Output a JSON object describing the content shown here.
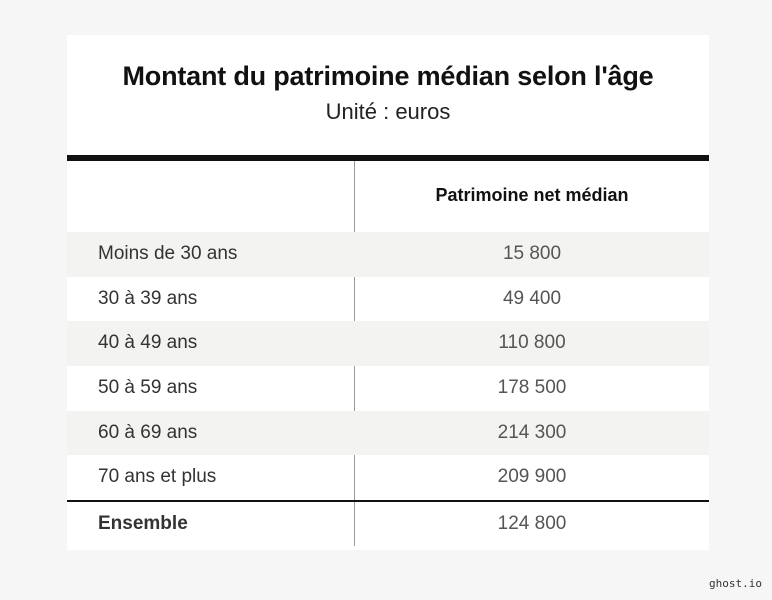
{
  "title": "Montant du patrimoine médian selon l'âge",
  "subtitle": "Unité : euros",
  "column_header": "Patrimoine net médian",
  "rows": [
    {
      "label": "Moins de 30 ans",
      "value": "15 800"
    },
    {
      "label": "30 à 39 ans",
      "value": "49 400"
    },
    {
      "label": "40 à 49 ans",
      "value": "110 800"
    },
    {
      "label": "50 à 59 ans",
      "value": "178 500"
    },
    {
      "label": "60 à 69 ans",
      "value": "214 300"
    },
    {
      "label": "70 ans et plus",
      "value": "209 900"
    }
  ],
  "total": {
    "label": "Ensemble",
    "value": "124 800"
  },
  "watermark": "ghost.io",
  "chart_data": {
    "type": "table",
    "title": "Montant du patrimoine médian selon l'âge",
    "subtitle": "Unité : euros",
    "columns": [
      "",
      "Patrimoine net médian"
    ],
    "categories": [
      "Moins de 30 ans",
      "30 à 39 ans",
      "40 à 49 ans",
      "50 à 59 ans",
      "60 à 69 ans",
      "70 ans et plus",
      "Ensemble"
    ],
    "values": [
      15800,
      49400,
      110800,
      178500,
      214300,
      209900,
      124800
    ]
  }
}
